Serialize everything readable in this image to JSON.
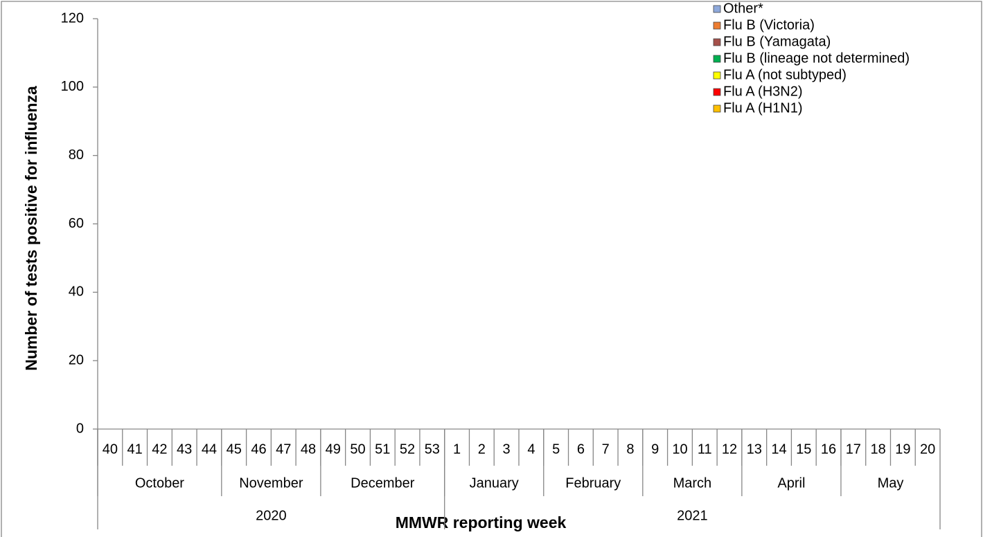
{
  "chart_data": {
    "type": "stacked-bar",
    "y_label": "Number of tests positive for influenza",
    "x_label": "MMWR reporting week",
    "categories": [
      "40",
      "41",
      "42",
      "43",
      "44",
      "45",
      "46",
      "47",
      "48",
      "49",
      "50",
      "51",
      "52",
      "53",
      "1",
      "2",
      "3",
      "4",
      "5",
      "6",
      "7",
      "8",
      "9",
      "10",
      "11",
      "12",
      "13",
      "14",
      "15",
      "16",
      "17",
      "18",
      "19",
      "20"
    ],
    "months": [
      "October",
      null,
      null,
      null,
      null,
      "November",
      null,
      null,
      null,
      "December",
      null,
      null,
      null,
      null,
      "January",
      null,
      null,
      null,
      "February",
      null,
      null,
      null,
      "March",
      null,
      null,
      null,
      "April",
      null,
      null,
      null,
      "May",
      null,
      null,
      null
    ],
    "years": [
      "2020",
      null,
      null,
      null,
      null,
      null,
      null,
      null,
      null,
      null,
      null,
      null,
      null,
      null,
      "2021",
      null,
      null,
      null,
      null,
      null,
      null,
      null,
      null,
      null,
      null,
      null,
      null,
      null,
      null,
      null,
      null,
      null,
      null,
      null
    ],
    "series": [
      {
        "name": "Flu A (H1N1)",
        "color": "#ffc000",
        "values": [
          0,
          0,
          0,
          0,
          0,
          0,
          0,
          0,
          0,
          0,
          0,
          0,
          0,
          0,
          0,
          0,
          0,
          0,
          0,
          0,
          0,
          0,
          0,
          0,
          0,
          0,
          0,
          0,
          0,
          0,
          0,
          0,
          0,
          0
        ]
      },
      {
        "name": "Flu A (H3N2)",
        "color": "#ff0000",
        "values": [
          0,
          0,
          0,
          0,
          0,
          0,
          0,
          0,
          0,
          0,
          0,
          0,
          0,
          0,
          0,
          0,
          0,
          0,
          0,
          0,
          0,
          0,
          0,
          0,
          0,
          0,
          0,
          0,
          0,
          0,
          0,
          0,
          0,
          0
        ]
      },
      {
        "name": "Flu A (not subtyped)",
        "color": "#ffff00",
        "values": [
          0,
          0,
          0,
          0,
          0,
          0,
          0,
          0,
          0,
          0,
          0,
          0,
          0,
          0,
          0,
          0,
          0,
          0,
          0,
          0,
          0,
          0,
          0,
          0,
          0,
          0,
          0,
          0,
          0,
          0,
          0,
          0,
          0,
          0
        ]
      },
      {
        "name": "Flu B (lineage not determined)",
        "color": "#00b050",
        "values": [
          0,
          0,
          0,
          0,
          0,
          0,
          0,
          0,
          0,
          0,
          0,
          0,
          0,
          0,
          0,
          0,
          0,
          0,
          0,
          0,
          0,
          0,
          0,
          0,
          0,
          0,
          0,
          0,
          0,
          0,
          0,
          0,
          0,
          0
        ]
      },
      {
        "name": "Flu B (Yamagata)",
        "color": "#a5504a",
        "values": [
          0,
          0,
          0,
          0,
          0,
          0,
          0,
          0,
          0,
          0,
          0,
          0,
          0,
          0,
          0,
          0,
          0,
          0,
          0,
          0,
          0,
          0,
          0,
          0,
          0,
          0,
          0,
          0,
          0,
          0,
          0,
          0,
          0,
          0
        ]
      },
      {
        "name": "Flu B (Victoria)",
        "color": "#ed7d31",
        "values": [
          0,
          0,
          0,
          0,
          0,
          0,
          0,
          0,
          0,
          0,
          0,
          0,
          0,
          0,
          0,
          0,
          0,
          0,
          0,
          0,
          0,
          0,
          0,
          0,
          0,
          0,
          0,
          0,
          0,
          0,
          0,
          0,
          0,
          0
        ]
      },
      {
        "name": "Other*",
        "color": "#8ea9db",
        "values": [
          0,
          0,
          0,
          0,
          0,
          0,
          0,
          0,
          0,
          0,
          0,
          0,
          0,
          0,
          0,
          0,
          0,
          0,
          0,
          0,
          0,
          0,
          0,
          0,
          0,
          0,
          0,
          0,
          0,
          0,
          0,
          0,
          0,
          0
        ]
      }
    ],
    "ylim": [
      0,
      120
    ],
    "yticks": [
      0,
      20,
      40,
      60,
      80,
      100,
      120
    ],
    "grid": false,
    "legend_position": "top-right"
  }
}
